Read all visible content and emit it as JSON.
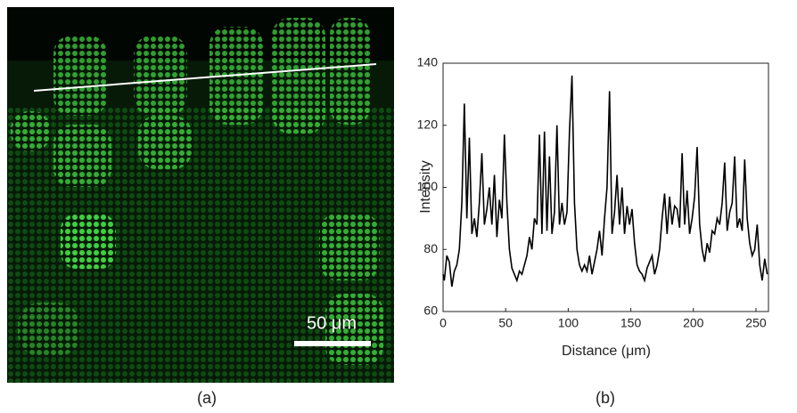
{
  "image_panel": {
    "scale_bar_label": "50 μm",
    "panel_label": "(a)"
  },
  "chart_data": {
    "type": "line",
    "panel_label": "(b)",
    "x_label": "Distance (μm)",
    "y_label": "Intensity",
    "xlim": [
      0,
      260
    ],
    "ylim": [
      60,
      140
    ],
    "xticks": [
      0,
      50,
      100,
      150,
      200,
      250
    ],
    "yticks": [
      60,
      80,
      100,
      120,
      140
    ],
    "x": [
      0,
      1,
      3,
      5,
      7,
      9,
      11,
      13,
      15,
      17,
      19,
      21,
      23,
      25,
      27,
      29,
      31,
      33,
      35,
      37,
      39,
      41,
      43,
      45,
      47,
      49,
      51,
      53,
      55,
      57,
      59,
      61,
      63,
      65,
      67,
      69,
      71,
      73,
      75,
      77,
      79,
      81,
      83,
      85,
      87,
      89,
      91,
      93,
      95,
      97,
      99,
      101,
      103,
      105,
      107,
      109,
      111,
      113,
      115,
      117,
      119,
      121,
      123,
      125,
      127,
      129,
      131,
      133,
      135,
      137,
      139,
      141,
      143,
      145,
      147,
      149,
      151,
      153,
      155,
      157,
      159,
      161,
      163,
      165,
      167,
      169,
      171,
      173,
      175,
      177,
      179,
      181,
      183,
      185,
      187,
      189,
      191,
      193,
      195,
      197,
      199,
      201,
      203,
      205,
      207,
      209,
      211,
      213,
      215,
      217,
      219,
      221,
      223,
      225,
      227,
      229,
      231,
      233,
      235,
      237,
      239,
      241,
      243,
      245,
      247,
      249,
      251,
      253,
      255,
      257,
      259
    ],
    "series": [
      {
        "name": "Intensity",
        "color": "#000000",
        "values": [
          72,
          70,
          78,
          76,
          68,
          73,
          75,
          80,
          95,
          127,
          90,
          116,
          85,
          90,
          84,
          95,
          111,
          88,
          93,
          100,
          88,
          104,
          84,
          96,
          90,
          117,
          95,
          80,
          74,
          72,
          70,
          73,
          72,
          75,
          78,
          84,
          80,
          90,
          88,
          117,
          85,
          118,
          86,
          110,
          85,
          92,
          120,
          88,
          95,
          88,
          92,
          118,
          136,
          95,
          80,
          75,
          73,
          75,
          73,
          78,
          72,
          76,
          80,
          86,
          78,
          90,
          100,
          131,
          85,
          92,
          104,
          88,
          100,
          85,
          94,
          88,
          93,
          82,
          75,
          73,
          72,
          70,
          74,
          76,
          78,
          72,
          75,
          80,
          90,
          98,
          85,
          97,
          88,
          94,
          93,
          87,
          111,
          88,
          99,
          85,
          90,
          97,
          113,
          88,
          80,
          76,
          82,
          79,
          86,
          85,
          90,
          88,
          95,
          108,
          86,
          92,
          95,
          110,
          87,
          90,
          86,
          109,
          90,
          82,
          78,
          80,
          88,
          75,
          70,
          77,
          72
        ]
      }
    ]
  }
}
